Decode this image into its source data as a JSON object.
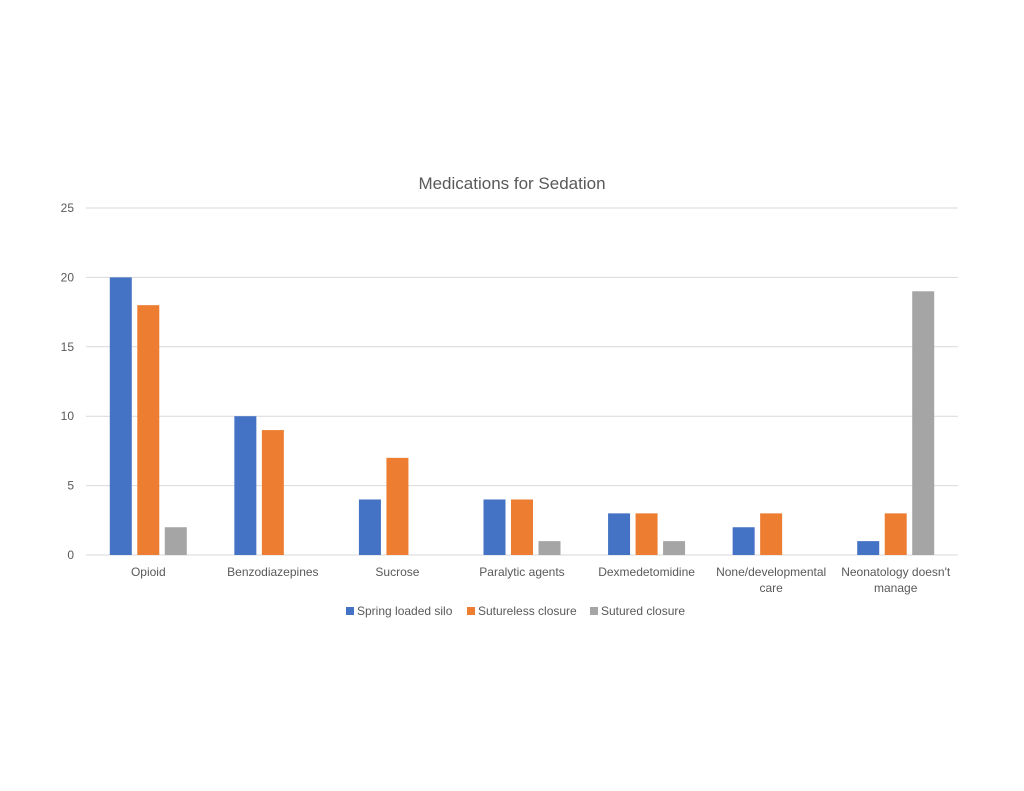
{
  "chart_data": {
    "type": "bar",
    "title": "Medications for Sedation",
    "xlabel": "",
    "ylabel": "",
    "ylim": [
      0,
      25
    ],
    "yticks": [
      0,
      5,
      10,
      15,
      20,
      25
    ],
    "grid": true,
    "legend_position": "bottom",
    "categories": [
      [
        "Opioid"
      ],
      [
        "Benzodiazepines"
      ],
      [
        "Sucrose"
      ],
      [
        "Paralytic agents"
      ],
      [
        "Dexmedetomidine"
      ],
      [
        "None/developmental",
        "care"
      ],
      [
        "Neonatology doesn't",
        "manage"
      ]
    ],
    "series": [
      {
        "name": "Spring loaded silo",
        "color": "#4472c4",
        "values": [
          20,
          10,
          4,
          4,
          3,
          2,
          1
        ]
      },
      {
        "name": "Sutureless closure",
        "color": "#ed7d31",
        "values": [
          18,
          9,
          7,
          4,
          3,
          3,
          3
        ]
      },
      {
        "name": "Sutured closure",
        "color": "#a5a5a5",
        "values": [
          2,
          0,
          0,
          1,
          1,
          0,
          19
        ]
      }
    ]
  }
}
